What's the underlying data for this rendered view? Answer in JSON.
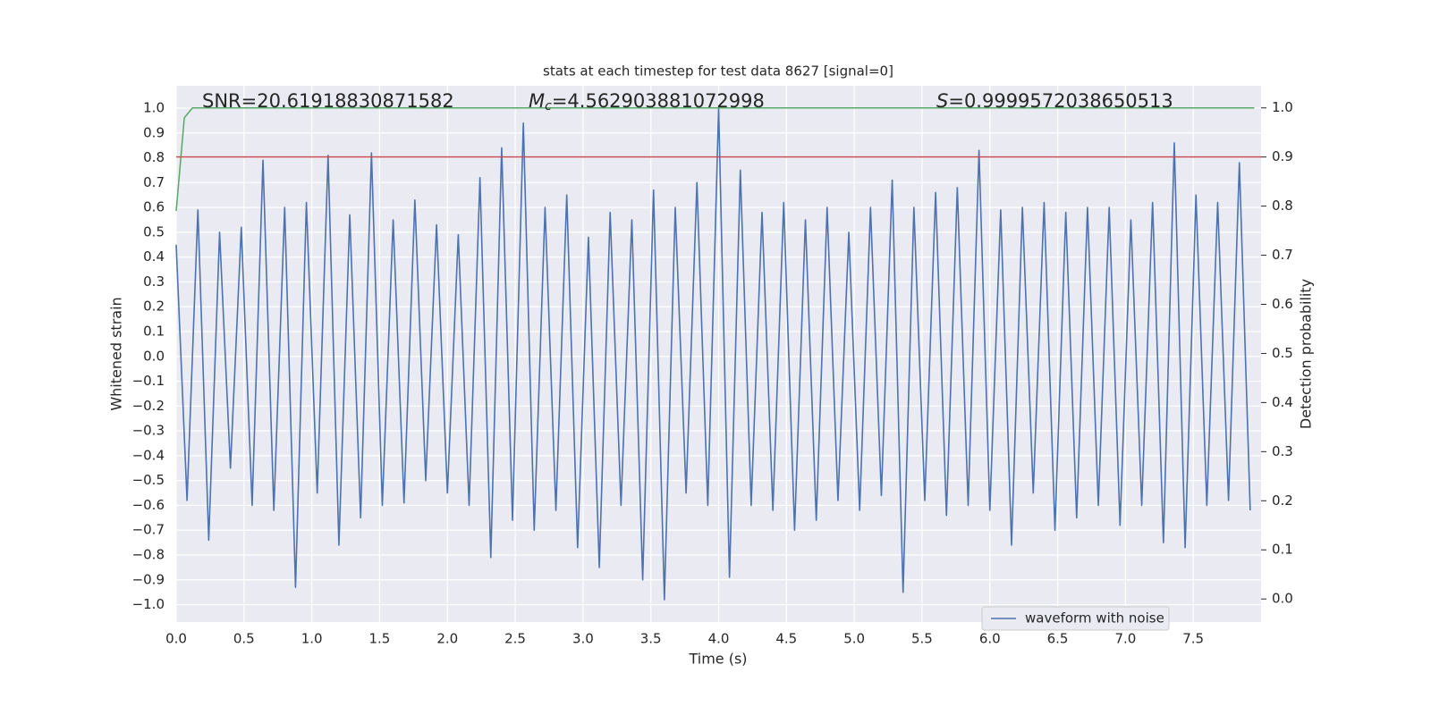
{
  "chart_data": {
    "type": "line",
    "title": "stats at each timestep for test data 8627 [signal=0]",
    "xlabel": "Time (s)",
    "ylabel": "Whitened strain",
    "y2label": "Detection probability",
    "annotations": [
      {
        "text": "SNR=20.61918830871582"
      },
      {
        "symbol": "M",
        "sub": "c",
        "text": "=4.562903881072998"
      },
      {
        "symbol": "S",
        "text": "=0.9999572038650513"
      }
    ],
    "x": [
      0,
      0.08,
      0.16,
      0.24,
      0.32,
      0.4,
      0.48,
      0.56,
      0.64,
      0.72,
      0.8,
      0.88,
      0.96,
      1.04,
      1.12,
      1.2,
      1.28,
      1.36,
      1.44,
      1.52,
      1.6,
      1.68,
      1.76,
      1.84,
      1.92,
      2,
      2.08,
      2.16,
      2.24,
      2.32,
      2.4,
      2.48,
      2.56,
      2.64,
      2.72,
      2.8,
      2.88,
      2.96,
      3.04,
      3.12,
      3.2,
      3.28,
      3.36,
      3.44,
      3.52,
      3.6,
      3.68,
      3.76,
      3.84,
      3.92,
      4,
      4.08,
      4.16,
      4.24,
      4.32,
      4.4,
      4.48,
      4.56,
      4.64,
      4.72,
      4.8,
      4.88,
      4.96,
      5.04,
      5.12,
      5.2,
      5.28,
      5.36,
      5.44,
      5.52,
      5.6,
      5.68,
      5.76,
      5.84,
      5.92,
      6,
      6.08,
      6.16,
      6.24,
      6.32,
      6.4,
      6.48,
      6.56,
      6.64,
      6.72,
      6.8,
      6.88,
      6.96,
      7.04,
      7.12,
      7.2,
      7.28,
      7.36,
      7.44,
      7.52,
      7.6,
      7.68,
      7.76,
      7.84,
      7.92
    ],
    "series": [
      {
        "name": "waveform with noise",
        "color": "#4c72b0",
        "values": [
          0.45,
          -0.58,
          0.59,
          -0.74,
          0.5,
          -0.45,
          0.52,
          -0.6,
          0.79,
          -0.62,
          0.6,
          -0.93,
          0.62,
          -0.55,
          0.81,
          -0.76,
          0.57,
          -0.65,
          0.82,
          -0.6,
          0.55,
          -0.59,
          0.63,
          -0.5,
          0.53,
          -0.55,
          0.49,
          -0.6,
          0.72,
          -0.81,
          0.84,
          -0.66,
          0.94,
          -0.7,
          0.6,
          -0.62,
          0.65,
          -0.77,
          0.48,
          -0.85,
          0.58,
          -0.6,
          0.55,
          -0.9,
          0.67,
          -0.98,
          0.6,
          -0.55,
          0.7,
          -0.6,
          1.0,
          -0.89,
          0.75,
          -0.6,
          0.58,
          -0.62,
          0.62,
          -0.7,
          0.55,
          -0.66,
          0.6,
          -0.58,
          0.5,
          -0.62,
          0.6,
          -0.56,
          0.71,
          -0.95,
          0.6,
          -0.58,
          0.66,
          -0.64,
          0.68,
          -0.6,
          0.83,
          -0.62,
          0.59,
          -0.76,
          0.6,
          -0.55,
          0.62,
          -0.7,
          0.58,
          -0.65,
          0.6,
          -0.6,
          0.6,
          -0.68,
          0.55,
          -0.6,
          0.62,
          -0.75,
          0.86,
          -0.77,
          0.65,
          -0.6,
          0.62,
          -0.58,
          0.78,
          -0.62
        ]
      },
      {
        "color": "#55a868",
        "axis": "y2",
        "x": [
          0,
          0.06,
          0.12,
          7.95
        ],
        "values": [
          0.79,
          0.98,
          1.0,
          1.0
        ]
      }
    ],
    "threshold": {
      "value": 0.9,
      "axis": "y2",
      "color": "#c44e52"
    },
    "xlim": [
      0,
      8
    ],
    "ylim": [
      -1.07,
      1.09
    ],
    "y2lim": [
      -0.047,
      1.045
    ],
    "xticks": [
      {
        "value": 0,
        "label": "0.0"
      },
      0.5,
      {
        "value": 1,
        "label": "1.0"
      },
      1.5,
      {
        "value": 2,
        "label": "2.0"
      },
      2.5,
      {
        "value": 3,
        "label": "3.0"
      },
      3.5,
      {
        "value": 4,
        "label": "4.0"
      },
      4.5,
      {
        "value": 5,
        "label": "5.0"
      },
      5.5,
      {
        "value": 6,
        "label": "6.0"
      },
      6.5,
      {
        "value": 7,
        "label": "7.0"
      },
      7.5
    ],
    "yticks": [
      {
        "value": -1,
        "label": "−1.0"
      },
      {
        "value": -0.9,
        "label": "−0.9"
      },
      {
        "value": -0.8,
        "label": "−0.8"
      },
      {
        "value": -0.7,
        "label": "−0.7"
      },
      {
        "value": -0.6,
        "label": "−0.6"
      },
      {
        "value": -0.5,
        "label": "−0.5"
      },
      {
        "value": -0.4,
        "label": "−0.4"
      },
      {
        "value": -0.3,
        "label": "−0.3"
      },
      {
        "value": -0.2,
        "label": "−0.2"
      },
      {
        "value": -0.1,
        "label": "−0.1"
      },
      {
        "value": 0,
        "label": "0.0"
      },
      0.1,
      0.2,
      0.3,
      0.4,
      0.5,
      0.6,
      0.7,
      0.8,
      0.9,
      {
        "value": 1,
        "label": "1.0"
      }
    ],
    "y2ticks": [
      {
        "value": 0,
        "label": "0.0"
      },
      0.1,
      0.2,
      0.3,
      0.4,
      0.5,
      0.6,
      0.7,
      0.8,
      0.9,
      {
        "value": 1,
        "label": "1.0"
      }
    ],
    "grid": true,
    "legend": "lower right"
  }
}
